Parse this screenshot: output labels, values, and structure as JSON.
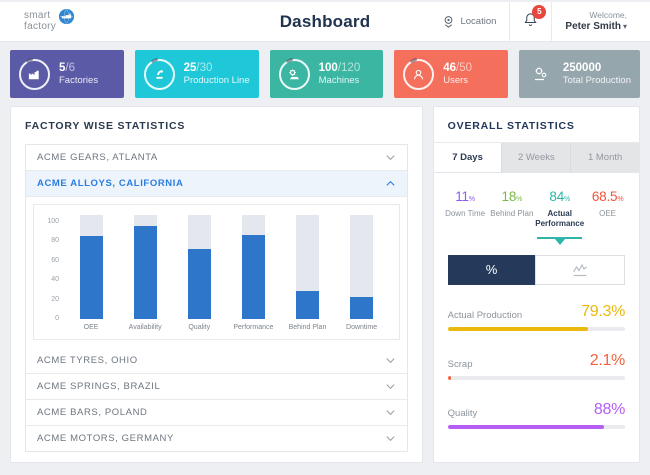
{
  "header": {
    "logo_line1": "smart",
    "logo_line2": "factory",
    "logo_icon": "factory-globe-icon",
    "title": "Dashboard",
    "location_label": "Location",
    "location_icon": "map-pin-icon",
    "bell_icon": "bell-icon",
    "notification_count": "5",
    "welcome_line1": "Welcome,",
    "welcome_line2": "Peter Smith",
    "dropdown_caret": "▾",
    "badge_color": "#e8473f"
  },
  "summary_cards": [
    {
      "value": "5",
      "total": "/6",
      "label": "Factories",
      "color": "#5b5aa7",
      "icon": "factory-icon"
    },
    {
      "value": "25",
      "total": "/30",
      "label": "Production Line",
      "color": "#1fc8d8",
      "icon": "robot-arm-icon"
    },
    {
      "value": "100",
      "total": "/120",
      "label": "Machines",
      "color": "#3ab6a3",
      "icon": "machine-icon"
    },
    {
      "value": "46",
      "total": "/50",
      "label": "Users",
      "color": "#f4705c",
      "icon": "user-icon"
    },
    {
      "value": "250000",
      "total": "",
      "label": "Total Production",
      "color": "#95a6ad",
      "icon": "production-gears-icon"
    }
  ],
  "factory_panel": {
    "title": "FACTORY WISE STATISTICS",
    "items": [
      {
        "label": "ACME GEARS, ATLANTA",
        "expanded": false
      },
      {
        "label": "ACME ALLOYS, CALIFORNIA",
        "expanded": true
      },
      {
        "label": "ACME TYRES, OHIO",
        "expanded": false
      },
      {
        "label": "ACME SPRINGS, BRAZIL",
        "expanded": false
      },
      {
        "label": "ACME BARS, POLAND",
        "expanded": false
      },
      {
        "label": "ACME MOTORS, GERMANY",
        "expanded": false
      }
    ]
  },
  "chart_data": {
    "type": "bar",
    "categories": [
      "OEE",
      "Availability",
      "Quality",
      "Performance",
      "Behind Plan",
      "Downtime"
    ],
    "values": [
      80,
      89,
      67,
      81,
      27,
      21
    ],
    "title": "",
    "xlabel": "",
    "ylabel": "",
    "ylim": [
      0,
      100
    ],
    "yticks": [
      0,
      20,
      40,
      60,
      80,
      100
    ],
    "bar_color": "#2d76c9",
    "track_color": "#e4e8ee",
    "grid": false,
    "legend": false
  },
  "overall_panel": {
    "title": "OVERALL STATISTICS",
    "tabs": [
      {
        "label": "7 Days",
        "active": true
      },
      {
        "label": "2 Weeks",
        "active": false
      },
      {
        "label": "1 Month",
        "active": false
      }
    ],
    "stats": [
      {
        "value": "11",
        "suffix": "%",
        "label": "Down Time",
        "color": "#8b5cf6",
        "selected": false
      },
      {
        "value": "18",
        "suffix": "%",
        "label": "Behind Plan",
        "color": "#7aba45",
        "selected": false
      },
      {
        "value": "84",
        "suffix": "%",
        "label": "Actual Performance",
        "color": "#2cb5a8",
        "selected": true
      },
      {
        "value": "68.5",
        "suffix": "%",
        "label": "OEE",
        "color": "#f4533e",
        "selected": false
      }
    ],
    "selected_accent": "#2cb5a8",
    "view_toggle": {
      "percent_label": "%",
      "graph_icon": "line-chart-icon",
      "active_bg": "#253a5b"
    },
    "progress": [
      {
        "label": "Actual Production",
        "value": "79.3%",
        "pct": 79.3,
        "color": "#eab90c"
      },
      {
        "label": "Scrap",
        "value": "2.1%",
        "pct": 2.1,
        "color": "#f4613d"
      },
      {
        "label": "Quality",
        "value": "88%",
        "pct": 88,
        "color": "#b45ef5"
      }
    ]
  }
}
